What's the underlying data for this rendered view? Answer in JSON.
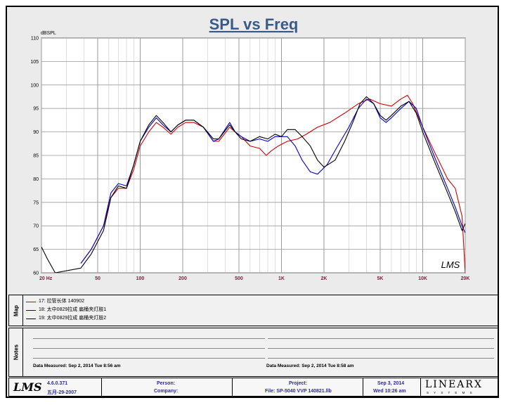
{
  "chart_data": {
    "type": "line",
    "title": "SPL vs Freq",
    "ylabel": "dBSPL",
    "xscale": "log",
    "xlim": [
      20,
      20000
    ],
    "ylim": [
      60,
      110
    ],
    "grid": true,
    "yticks": [
      60,
      65,
      70,
      75,
      80,
      85,
      90,
      95,
      100,
      105,
      110
    ],
    "xtick_labels": [
      {
        "value": 20,
        "label": "20 Hz"
      },
      {
        "value": 50,
        "label": "50"
      },
      {
        "value": 100,
        "label": "100"
      },
      {
        "value": 200,
        "label": "200"
      },
      {
        "value": 500,
        "label": "500"
      },
      {
        "value": 1000,
        "label": "1K"
      },
      {
        "value": 2000,
        "label": "2K"
      },
      {
        "value": 5000,
        "label": "5K"
      },
      {
        "value": 10000,
        "label": "10K"
      },
      {
        "value": 20000,
        "label": "20K"
      }
    ],
    "watermark": "LMS",
    "series": [
      {
        "name": "17: 拉管长体 140902",
        "color": "#cc0000",
        "points": [
          [
            38,
            62
          ],
          [
            45,
            65
          ],
          [
            55,
            70
          ],
          [
            62,
            76
          ],
          [
            70,
            78
          ],
          [
            80,
            78
          ],
          [
            90,
            82
          ],
          [
            100,
            87
          ],
          [
            115,
            90
          ],
          [
            130,
            92
          ],
          [
            145,
            91
          ],
          [
            165,
            89.5
          ],
          [
            185,
            91
          ],
          [
            210,
            92
          ],
          [
            240,
            92
          ],
          [
            280,
            91
          ],
          [
            330,
            88
          ],
          [
            360,
            88
          ],
          [
            430,
            91
          ],
          [
            470,
            90
          ],
          [
            520,
            89
          ],
          [
            600,
            87
          ],
          [
            700,
            86.5
          ],
          [
            780,
            85
          ],
          [
            850,
            86
          ],
          [
            950,
            87
          ],
          [
            1100,
            88
          ],
          [
            1300,
            88.5
          ],
          [
            1500,
            89.5
          ],
          [
            1800,
            91
          ],
          [
            2200,
            92
          ],
          [
            2800,
            94
          ],
          [
            3500,
            96
          ],
          [
            4200,
            97
          ],
          [
            5000,
            96
          ],
          [
            6000,
            95.5
          ],
          [
            7000,
            97
          ],
          [
            7800,
            97.8
          ],
          [
            8500,
            96
          ],
          [
            10000,
            91
          ],
          [
            12000,
            86
          ],
          [
            15000,
            80
          ],
          [
            17000,
            78
          ],
          [
            19000,
            72
          ],
          [
            20000,
            60
          ]
        ]
      },
      {
        "name": "18: 太中0829拉成 扁桶夹灯肢1",
        "color": "#0000cc",
        "points": [
          [
            38,
            62
          ],
          [
            45,
            65
          ],
          [
            55,
            70
          ],
          [
            62,
            77
          ],
          [
            70,
            79
          ],
          [
            80,
            78.5
          ],
          [
            90,
            83
          ],
          [
            100,
            88
          ],
          [
            115,
            91
          ],
          [
            130,
            93
          ],
          [
            145,
            91.5
          ],
          [
            165,
            90
          ],
          [
            185,
            91.5
          ],
          [
            210,
            92.5
          ],
          [
            240,
            92.5
          ],
          [
            280,
            91
          ],
          [
            330,
            88
          ],
          [
            360,
            88.5
          ],
          [
            430,
            92
          ],
          [
            470,
            90
          ],
          [
            520,
            89
          ],
          [
            600,
            88
          ],
          [
            700,
            88.5
          ],
          [
            800,
            88
          ],
          [
            900,
            89
          ],
          [
            1000,
            89
          ],
          [
            1100,
            89
          ],
          [
            1250,
            87
          ],
          [
            1400,
            84
          ],
          [
            1600,
            81.5
          ],
          [
            1800,
            81
          ],
          [
            2100,
            83
          ],
          [
            2500,
            87
          ],
          [
            3000,
            91
          ],
          [
            3500,
            95
          ],
          [
            4000,
            97
          ],
          [
            4500,
            96
          ],
          [
            5000,
            93
          ],
          [
            5500,
            92
          ],
          [
            6000,
            93
          ],
          [
            7000,
            95
          ],
          [
            8000,
            96.5
          ],
          [
            9000,
            95
          ],
          [
            10000,
            91
          ],
          [
            12000,
            85
          ],
          [
            15000,
            78
          ],
          [
            17000,
            74
          ],
          [
            19000,
            70
          ],
          [
            20000,
            68.5
          ]
        ]
      },
      {
        "name": "19: 太中0829拉成 扁桶夹灯肢2",
        "color": "#000000",
        "points": [
          [
            20,
            65.5
          ],
          [
            22,
            63
          ],
          [
            25,
            60
          ],
          [
            38,
            61
          ],
          [
            45,
            64
          ],
          [
            55,
            69
          ],
          [
            62,
            76
          ],
          [
            70,
            78.5
          ],
          [
            80,
            78
          ],
          [
            90,
            83
          ],
          [
            100,
            88
          ],
          [
            115,
            91.5
          ],
          [
            130,
            93.5
          ],
          [
            145,
            92
          ],
          [
            165,
            90
          ],
          [
            185,
            91.5
          ],
          [
            210,
            92.5
          ],
          [
            240,
            92.5
          ],
          [
            280,
            91
          ],
          [
            330,
            88.5
          ],
          [
            360,
            88.5
          ],
          [
            430,
            91.5
          ],
          [
            470,
            90
          ],
          [
            520,
            88.5
          ],
          [
            600,
            88
          ],
          [
            700,
            89
          ],
          [
            800,
            88.5
          ],
          [
            900,
            89.5
          ],
          [
            1000,
            89
          ],
          [
            1100,
            90.5
          ],
          [
            1250,
            90.5
          ],
          [
            1400,
            89
          ],
          [
            1600,
            87
          ],
          [
            1800,
            84
          ],
          [
            2000,
            82.5
          ],
          [
            2400,
            84
          ],
          [
            2800,
            88
          ],
          [
            3200,
            92
          ],
          [
            3600,
            96
          ],
          [
            4000,
            97.5
          ],
          [
            4500,
            96
          ],
          [
            5000,
            93.5
          ],
          [
            5500,
            92.5
          ],
          [
            6000,
            93.5
          ],
          [
            7000,
            95.5
          ],
          [
            8000,
            96.5
          ],
          [
            9000,
            94
          ],
          [
            10000,
            90
          ],
          [
            12000,
            84
          ],
          [
            15000,
            77
          ],
          [
            17000,
            73
          ],
          [
            19000,
            69
          ],
          [
            20000,
            70.5
          ]
        ]
      }
    ]
  },
  "legend": {
    "title": "Map",
    "items": [
      {
        "label": "17: 拉管长体 140902",
        "color": "#cc0000"
      },
      {
        "label": "18: 太中0829拉成 扁桶夹灯肢1",
        "color": "#0000cc"
      },
      {
        "label": "19: 太中0829拉成 扁桶夹灯肢2",
        "color": "#000000"
      }
    ]
  },
  "notes": {
    "title": "Notes",
    "measured_left": "Data Measured:  Sep  2, 2014   Tue  8:56 am",
    "measured_right": "Data Measured:  Sep  2, 2014   Tue  8:58 am"
  },
  "footer": {
    "logo": "LMS",
    "version": "4.6.0.371",
    "version_date": "五月-29-2007",
    "person_label": "Person:",
    "company_label": "Company:",
    "project_label": "Project:",
    "file_label": "File: SP-5040 VVP 140821.llb",
    "date": "Sep  3, 2014",
    "datetime": "Wed 10:26 am",
    "brand": "LINEARX",
    "brand_sub": "S Y S T E M S"
  }
}
